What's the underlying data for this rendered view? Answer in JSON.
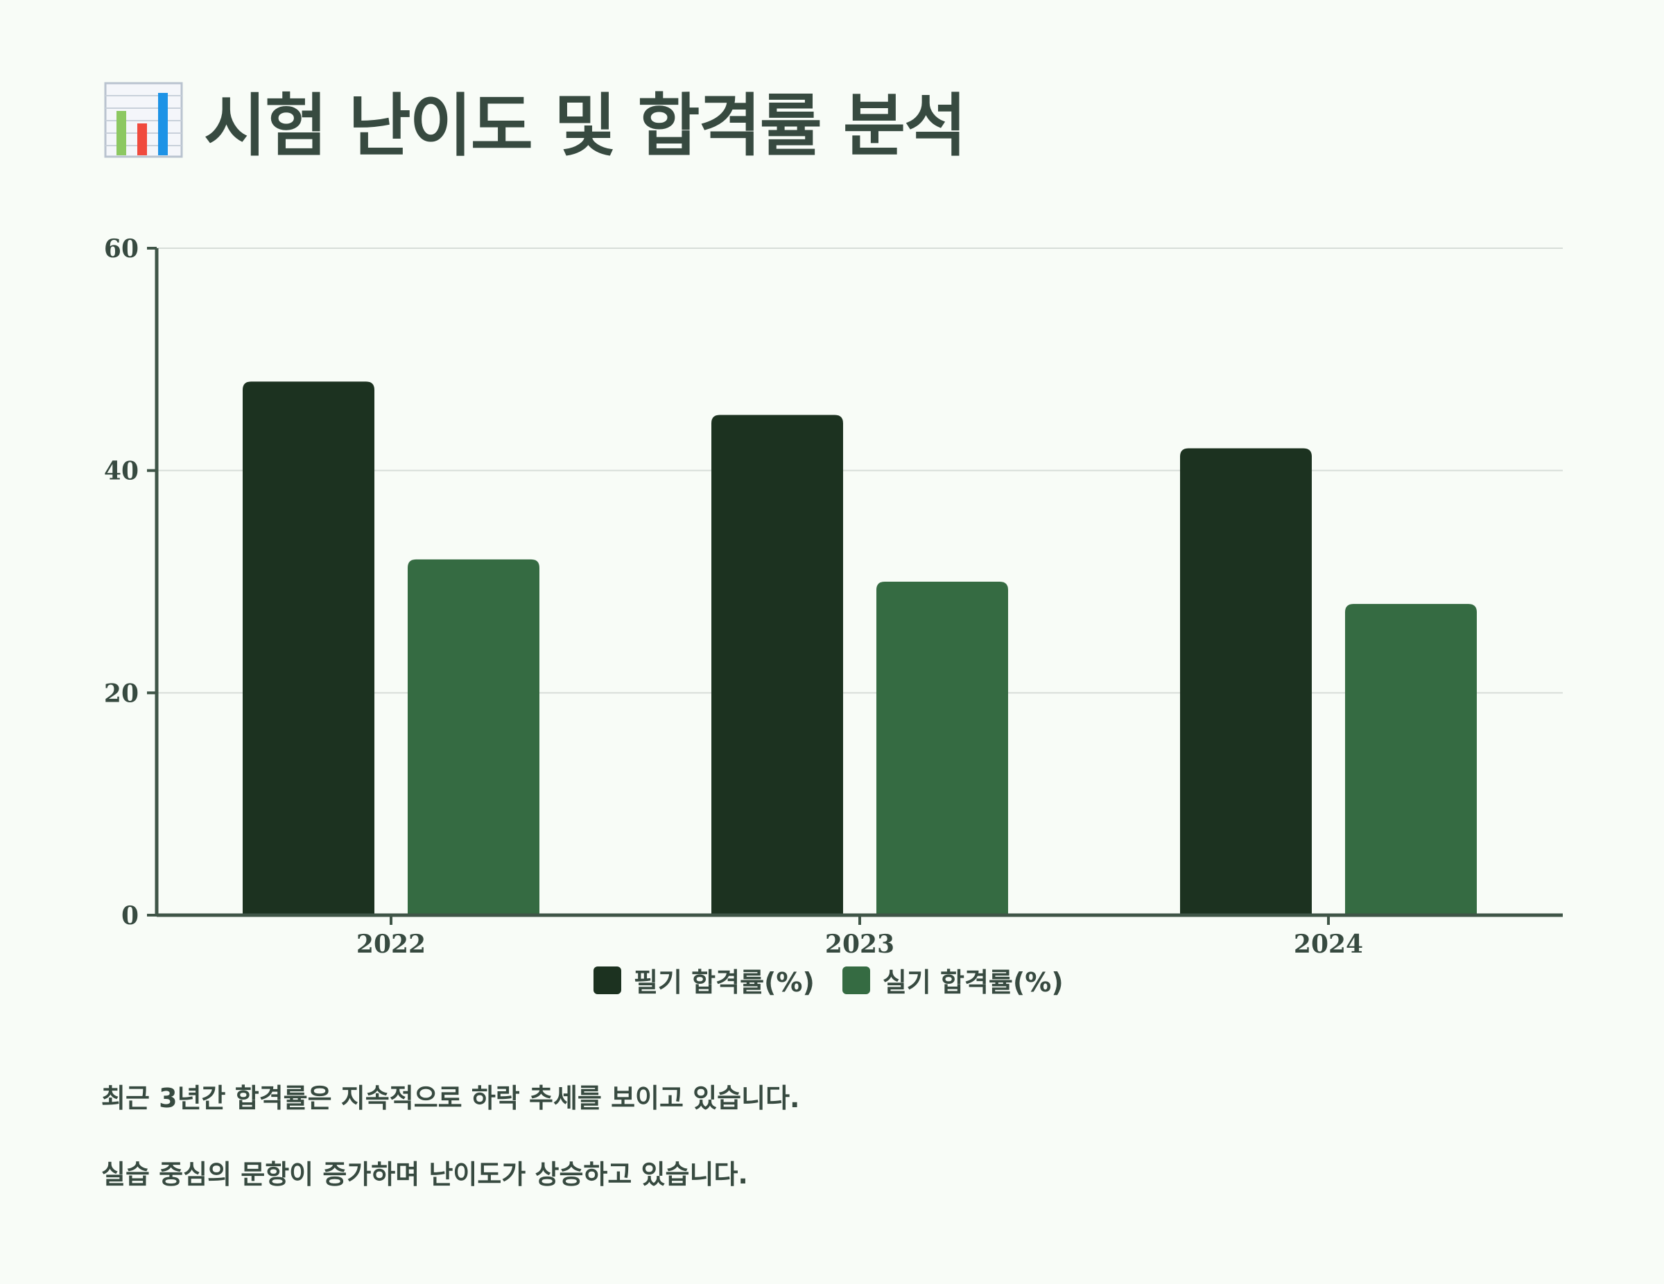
{
  "title": {
    "icon": "bar-chart-emoji-icon",
    "text": "시험 난이도 및 합격률 분석"
  },
  "chart_data": {
    "type": "bar",
    "categories": [
      "2022",
      "2023",
      "2024"
    ],
    "series": [
      {
        "name": "필기 합격률(%)",
        "values": [
          48,
          45,
          42
        ],
        "color": "#1c3220"
      },
      {
        "name": "실기 합격률(%)",
        "values": [
          32,
          30,
          28
        ],
        "color": "#356b42"
      }
    ],
    "yticks": [
      "0",
      "20",
      "40",
      "60"
    ],
    "ylim": [
      0,
      60
    ],
    "grid": true,
    "legend_position": "bottom-center"
  },
  "notes": [
    "최근 3년간 합격률은 지속적으로 하락 추세를 보이고 있습니다.",
    "실습 중심의 문항이 증가하며 난이도가 상승하고 있습니다."
  ]
}
